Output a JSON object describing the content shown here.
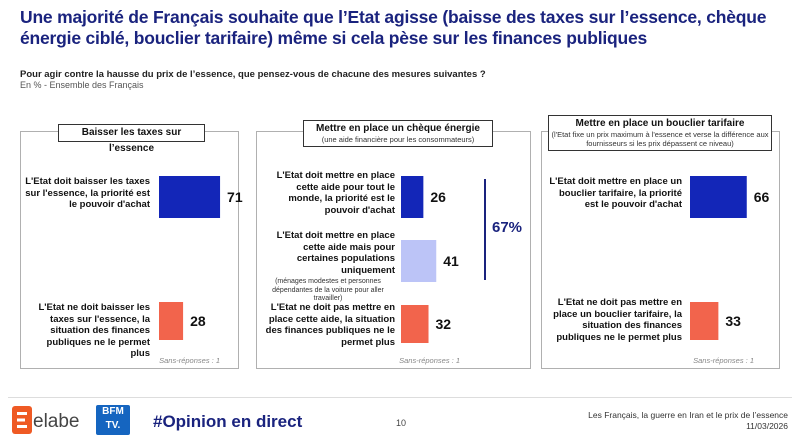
{
  "title": "Une majorité de Français souhaite que l’Etat agisse (baisse des taxes sur l’essence, chèque énergie ciblé, bouclier tarifaire) même si cela pèse sur les finances publiques",
  "question": "Pour agir contre la hausse du prix de l’essence, que pensez-vous de chacune des mesures suivantes ?",
  "subtitle": "En % - Ensemble des Français",
  "chart_data": [
    {
      "type": "bar",
      "title": "Baisser les taxes sur l’essence",
      "categories": [
        "L'Etat doit baisser les taxes sur l'essence, la priorité est le pouvoir d'achat",
        "L'Etat ne doit baisser les taxes sur l'essence, la situation des finances publiques ne le permet plus"
      ],
      "values": [
        71,
        28
      ],
      "colors": [
        "#1326b8",
        "#f2644c"
      ],
      "no_answer": "Sans-réponses : 1",
      "unit": "%"
    },
    {
      "type": "bar",
      "title": "Mettre en place un chèque énergie",
      "note": "(une aide financière pour les consommateurs)",
      "categories": [
        "L'Etat doit mettre en place cette aide pour tout le monde, la priorité est le pouvoir d'achat",
        "L'Etat doit mettre en place cette aide mais pour certaines populations uniquement",
        "L'Etat ne doit pas mettre en place cette aide, la situation des finances publiques ne le permet plus"
      ],
      "category_notes": [
        "",
        "(ménages modestes et personnes dépendantes de la voiture pour aller travailler)",
        ""
      ],
      "values": [
        26,
        41,
        32
      ],
      "colors": [
        "#1326b8",
        "#bcc4f7",
        "#f2644c"
      ],
      "bracket_total": "67%",
      "no_answer": "Sans-réponses : 1",
      "unit": "%"
    },
    {
      "type": "bar",
      "title": "Mettre en place un bouclier tarifaire",
      "note": "(l'Etat fixe un prix maximum à l'essence et verse la différence aux fournisseurs si les prix dépassent ce niveau)",
      "categories": [
        "L'Etat doit mettre en place un bouclier tarifaire, la priorité est le pouvoir d'achat",
        "L'Etat ne doit pas mettre en place un bouclier tarifaire, la situation des finances publiques ne le permet plus"
      ],
      "values": [
        66,
        33
      ],
      "colors": [
        "#1326b8",
        "#f2644c"
      ],
      "no_answer": "Sans-réponses : 1",
      "unit": "%"
    }
  ],
  "footer": {
    "brand": "elabe",
    "partner_line1": "BFM",
    "partner_line2": "TV.",
    "hashtag": "#Opinion en direct",
    "page_number": "10",
    "source_line1": "Les Français, la guerre en Iran et le prix de l’essence",
    "source_line2": "11/03/2026"
  },
  "colors": {
    "title": "#1a237e",
    "bracket": "#1a237e"
  }
}
